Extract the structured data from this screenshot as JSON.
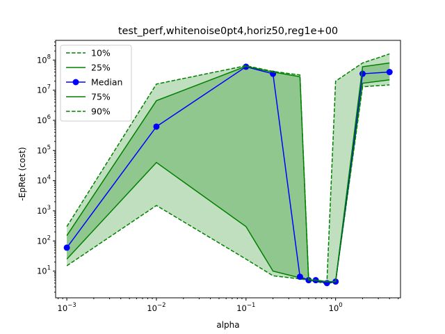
{
  "chart_data": {
    "type": "line",
    "title": "test_perf,whitenoise0pt4,horiz50,reg1e+00",
    "xlabel": "alpha",
    "ylabel": "-EpRet (cost)",
    "xscale": "log",
    "yscale": "log",
    "xlim": [
      0.00075,
      5.3
    ],
    "ylim": [
      1.3,
      450000000
    ],
    "grid": false,
    "legend_position": "top-left",
    "x_ticks": [
      {
        "value": 0.001,
        "base": "10",
        "exp": "−3"
      },
      {
        "value": 0.01,
        "base": "10",
        "exp": "−2"
      },
      {
        "value": 0.1,
        "base": "10",
        "exp": "−1"
      },
      {
        "value": 1,
        "base": "10",
        "exp": "0"
      }
    ],
    "y_ticks": [
      {
        "value": 10,
        "base": "10",
        "exp": "1"
      },
      {
        "value": 100,
        "base": "10",
        "exp": "2"
      },
      {
        "value": 1000,
        "base": "10",
        "exp": "3"
      },
      {
        "value": 10000,
        "base": "10",
        "exp": "4"
      },
      {
        "value": 100000,
        "base": "10",
        "exp": "5"
      },
      {
        "value": 1000000,
        "base": "10",
        "exp": "6"
      },
      {
        "value": 10000000,
        "base": "10",
        "exp": "7"
      },
      {
        "value": 100000000,
        "base": "10",
        "exp": "8"
      }
    ],
    "x": [
      0.001,
      0.01,
      0.1,
      0.2,
      0.4,
      0.5,
      0.6,
      0.8,
      1.0,
      2.0,
      4.0
    ],
    "series": [
      {
        "name": "10%",
        "style": "dashed",
        "color": "#008000",
        "values": [
          15,
          1500,
          25,
          7,
          5.5,
          5,
          4.5,
          3.8,
          4.5,
          13000000,
          15000000
        ]
      },
      {
        "name": "25%",
        "style": "solid",
        "color": "#008000",
        "values": [
          25,
          40000,
          300,
          10,
          6,
          5,
          4.7,
          4,
          4.5,
          17000000,
          22000000
        ]
      },
      {
        "name": "Median",
        "style": "solid-marker",
        "color": "#0000ff",
        "values": [
          60,
          620000,
          60000000,
          35000000,
          6.5,
          5,
          5,
          4,
          4.5,
          35000000,
          40000000
        ]
      },
      {
        "name": "75%",
        "style": "solid",
        "color": "#008000",
        "values": [
          150,
          4500000,
          62000000,
          40000000,
          28000000,
          5,
          5,
          4.5,
          4.5,
          60000000,
          80000000
        ]
      },
      {
        "name": "90%",
        "style": "dashed",
        "color": "#008000",
        "values": [
          300,
          16000000,
          65000000,
          42000000,
          32000000,
          5.5,
          5,
          4.5,
          20000000,
          80000000,
          160000000
        ]
      }
    ],
    "colors": {
      "line_green": "#008000",
      "median_blue": "#0000ff",
      "fill_outer": "#c0dfbf",
      "fill_inner": "#90c78f"
    }
  }
}
